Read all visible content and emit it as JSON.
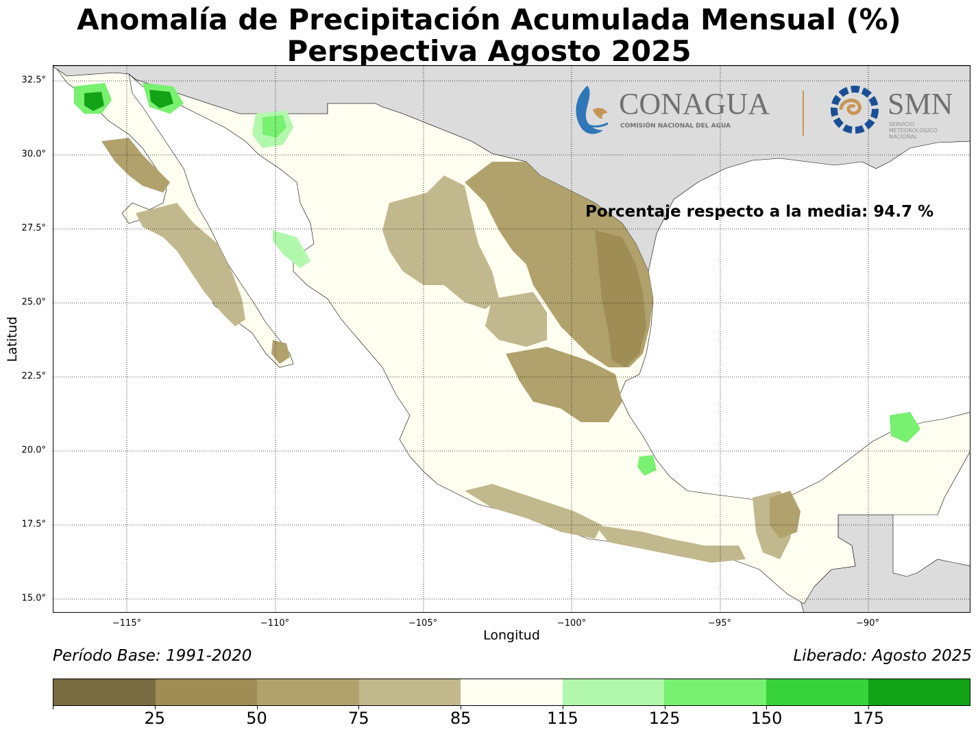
{
  "title": {
    "line1": "Anomalía de Precipitación Acumulada Mensual (%)",
    "line2": "Perspectiva Agosto 2025"
  },
  "axes": {
    "xlabel": "Longitud",
    "ylabel": "Latitud",
    "xticks": [
      "−115°",
      "−110°",
      "−105°",
      "−100°",
      "−95°",
      "−90°"
    ],
    "yticks": [
      "32.5°",
      "30.0°",
      "27.5°",
      "25.0°",
      "22.5°",
      "20.0°",
      "17.5°",
      "15.0°"
    ]
  },
  "annotation": "Porcentaje respecto a la media: 94.7 %",
  "footer": {
    "base_period": "Período Base: 1991-2020",
    "released": "Liberado: Agosto 2025"
  },
  "logos": {
    "conagua_name": "CONAGUA",
    "conagua_sub": "COMISIÓN NACIONAL DEL AGUA",
    "smn_name": "SMN",
    "smn_sub1": "SERVICIO",
    "smn_sub2": "METEOROLÓGICO",
    "smn_sub3": "NACIONAL"
  },
  "colorbar": {
    "colors": [
      "#7a6c42",
      "#9e8e55",
      "#b1a26d",
      "#c2b88d",
      "#fefff0",
      "#b1f8ac",
      "#78f070",
      "#38d33a",
      "#12a316"
    ],
    "labels": [
      "25",
      "50",
      "75",
      "85",
      "115",
      "125",
      "150",
      "175"
    ]
  },
  "map_colors": {
    "land": "#fefff0",
    "sea": "#ffffff",
    "foreign_land": "#dcdcdc",
    "dry_moderate": "#b1a26d",
    "dry_light": "#c2b88d",
    "dry_strong": "#9e8e55",
    "wet_light": "#b1f8ac",
    "wet_moderate": "#78f070",
    "wet_strong": "#38d33a",
    "wet_extreme": "#12a316"
  }
}
